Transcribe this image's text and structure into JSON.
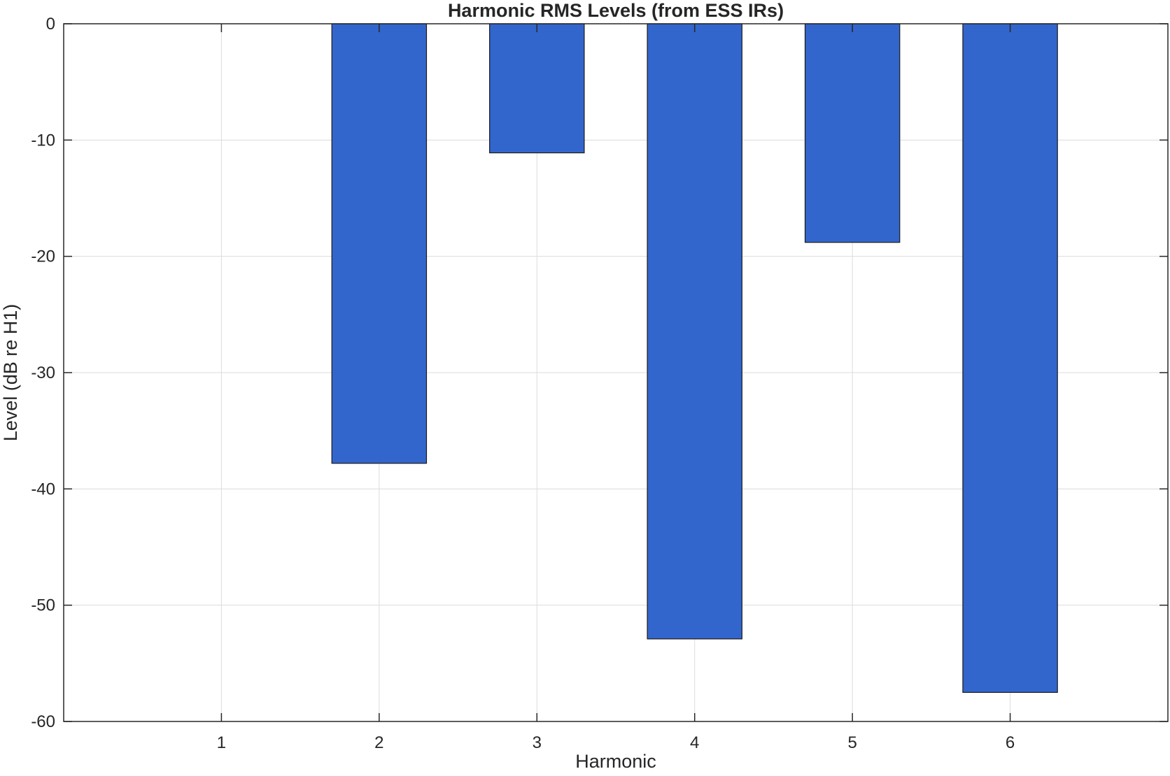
{
  "chart_data": {
    "type": "bar",
    "title": "Harmonic RMS Levels (from ESS IRs)",
    "xlabel": "Harmonic",
    "ylabel": "Level (dB re H1)",
    "categories": [
      "1",
      "2",
      "3",
      "4",
      "5",
      "6"
    ],
    "values": [
      0,
      -37.8,
      -11.1,
      -52.9,
      -18.8,
      -57.5
    ],
    "xlim": [
      0,
      7
    ],
    "ylim": [
      -60,
      0
    ],
    "yticks": [
      0,
      -10,
      -20,
      -30,
      -40,
      -50,
      -60
    ],
    "ytick_labels": [
      "0",
      "-10",
      "-20",
      "-30",
      "-40",
      "-50",
      "-60"
    ],
    "grid": true,
    "bar_color": "#3366cc",
    "bar_edge_color": "#1a1a1a"
  }
}
